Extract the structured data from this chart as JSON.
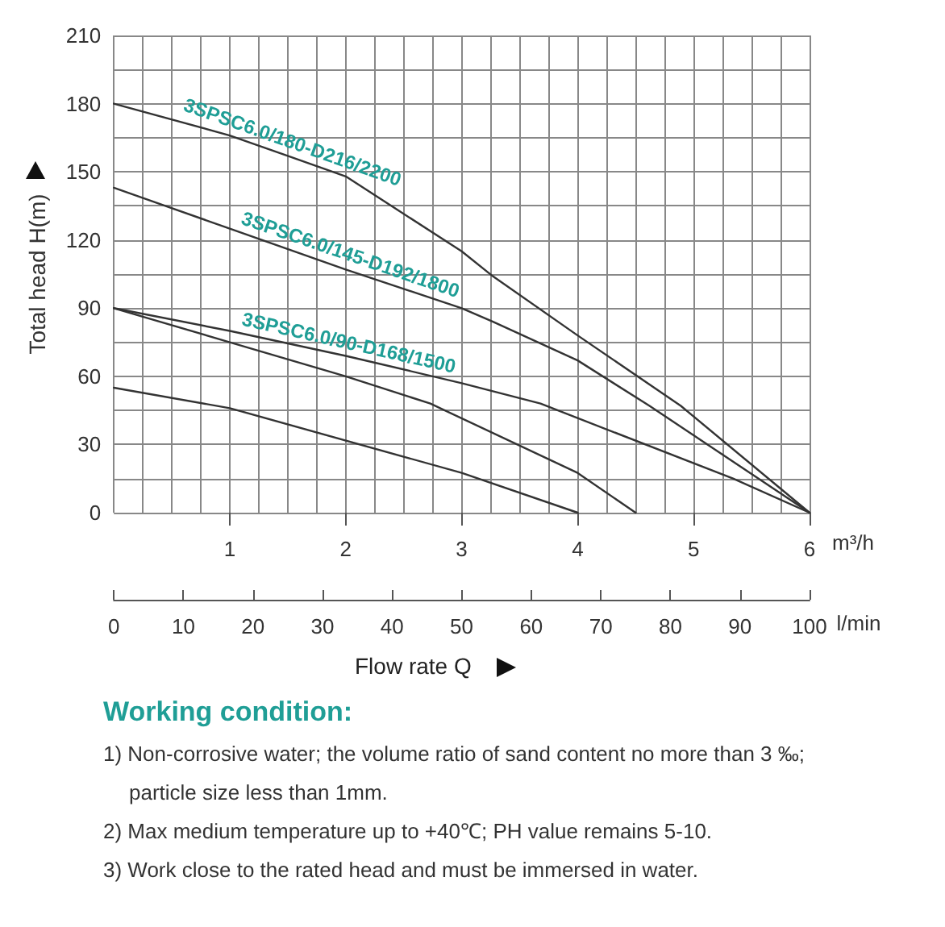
{
  "chart_data": {
    "type": "line",
    "xlabel": "m³/h",
    "x2label": "l/min",
    "ylabel": "Total head H(m)",
    "xlim": [
      0,
      6
    ],
    "xticks": [
      {
        "value": 0,
        "label": null
      },
      {
        "value": 0.25,
        "label": null
      },
      {
        "value": 0.5,
        "label": null
      },
      {
        "value": 0.75,
        "label": null
      },
      1,
      {
        "value": 1.25,
        "label": null
      },
      {
        "value": 1.5,
        "label": null
      },
      {
        "value": 1.75,
        "label": null
      },
      2,
      {
        "value": 2.25,
        "label": null
      },
      {
        "value": 2.5,
        "label": null
      },
      {
        "value": 2.75,
        "label": null
      },
      3,
      {
        "value": 3.25,
        "label": null
      },
      {
        "value": 3.5,
        "label": null
      },
      {
        "value": 3.75,
        "label": null
      },
      4,
      {
        "value": 4.25,
        "label": null
      },
      {
        "value": 4.5,
        "label": null
      },
      {
        "value": 4.75,
        "label": null
      },
      5,
      {
        "value": 5.25,
        "label": null
      },
      {
        "value": 5.5,
        "label": null
      },
      {
        "value": 5.75,
        "label": null
      },
      6
    ],
    "x2lim": [
      0,
      100
    ],
    "x2ticks": [
      0,
      10,
      20,
      30,
      40,
      50,
      60,
      70,
      80,
      90,
      100
    ],
    "ylim": [
      0,
      210
    ],
    "yticks": [
      0,
      {
        "value": 15,
        "label": null
      },
      30,
      {
        "value": 45,
        "label": null
      },
      60,
      {
        "value": 75,
        "label": null
      },
      90,
      {
        "value": 105,
        "label": null
      },
      120,
      {
        "value": 135,
        "label": null
      },
      150,
      {
        "value": 165,
        "label": null
      },
      180,
      {
        "value": 195,
        "label": null
      },
      210
    ],
    "grid": true,
    "marker": "none",
    "line_style": "solid",
    "series": [
      {
        "name": "3SPSC6.0/180-D216/2200",
        "color": "#333333",
        "x": [
          0,
          1,
          1.5,
          2,
          3,
          3.27,
          4,
          4.89,
          6
        ],
        "values": [
          180,
          166,
          157,
          148,
          115,
          104,
          78,
          47,
          0
        ]
      },
      {
        "name": "3SPSC6.0/145-D192/1800",
        "color": "#333333",
        "x": [
          0,
          1,
          2,
          3,
          3.27,
          4,
          4.62,
          6
        ],
        "values": [
          143,
          125,
          107,
          90,
          84,
          67,
          47,
          0
        ]
      },
      {
        "name": "3SPSC6.0/90-D168/1500",
        "color": "#333333",
        "x": [
          0,
          1,
          2,
          3,
          3.68,
          5.34,
          6
        ],
        "values": [
          90,
          80,
          69,
          57,
          48,
          15,
          0
        ]
      },
      {
        "color": "#333333",
        "x": [
          0,
          1,
          2,
          2.73,
          4,
          4.5
        ],
        "values": [
          90,
          75,
          60,
          48,
          17.5,
          0
        ]
      },
      {
        "color": "#333333",
        "x": [
          0,
          1,
          3,
          4
        ],
        "values": [
          55,
          46,
          17.5,
          0
        ]
      }
    ],
    "annotations": [
      "Flow rate Q",
      "Working condition:",
      "1) Non-corrosive water; the volume ratio of sand content no more than 3 ‰; particle size less than 1mm.",
      "2) Max medium temperature up to +40℃; PH value remains 5-10.",
      "3) Work close to the rated head and must be immersed in water."
    ]
  }
}
